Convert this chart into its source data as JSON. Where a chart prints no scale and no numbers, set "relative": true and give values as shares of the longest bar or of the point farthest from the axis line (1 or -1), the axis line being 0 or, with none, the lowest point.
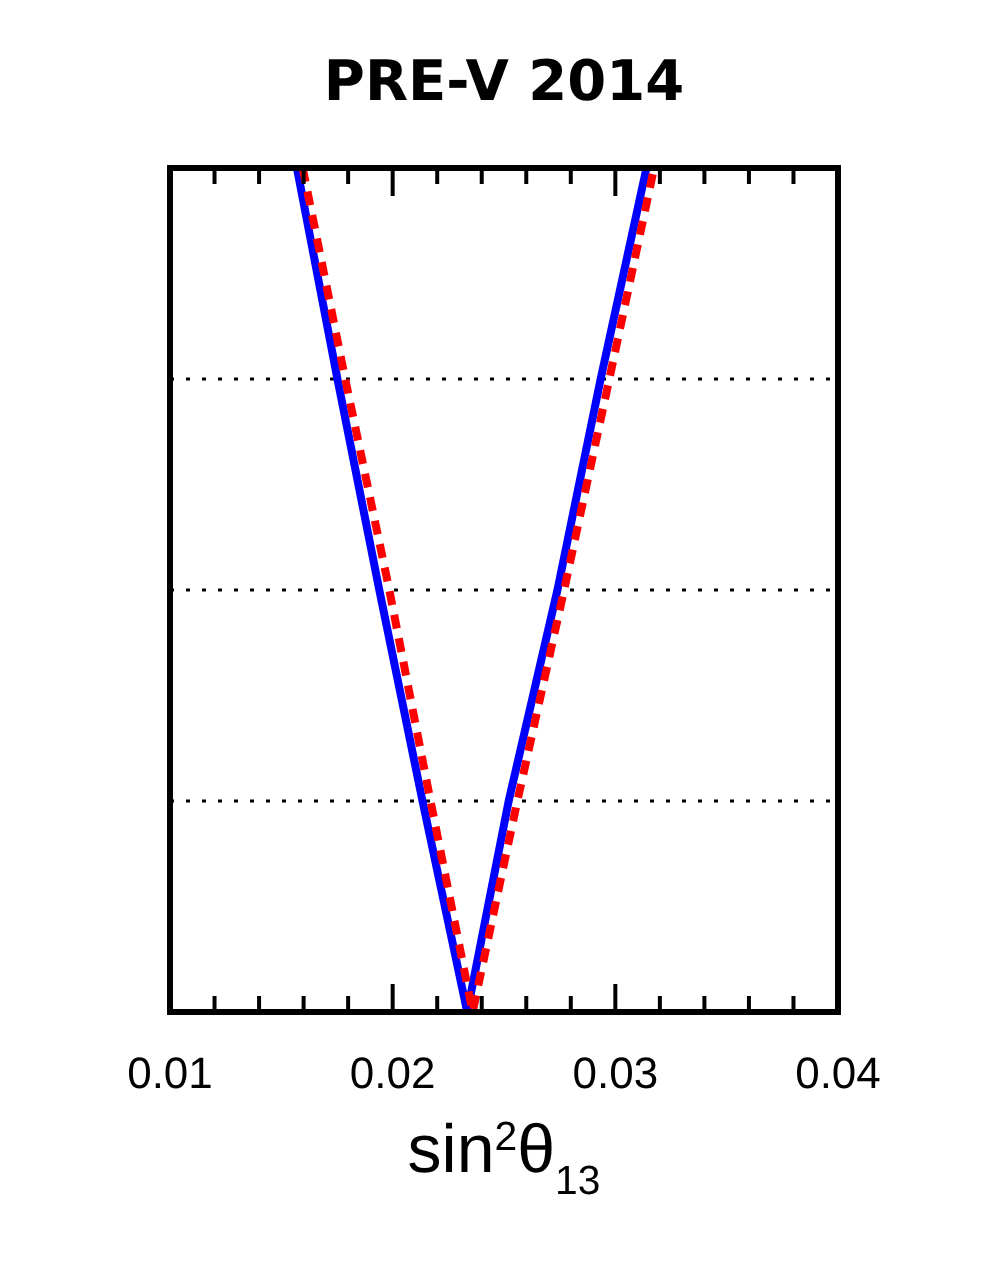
{
  "chart_data": {
    "type": "line",
    "title": "PRE-V 2014",
    "xlabel": "sin$^{2}$θ$_{13}$",
    "relative": true,
    "xlim": [
      0.01,
      0.04
    ],
    "xticks": [
      0.01,
      {
        "value": 0.012,
        "label": null
      },
      {
        "value": 0.014,
        "label": null
      },
      {
        "value": 0.016,
        "label": null
      },
      {
        "value": 0.018,
        "label": null
      },
      0.02,
      {
        "value": 0.022,
        "label": null
      },
      {
        "value": 0.024,
        "label": null
      },
      {
        "value": 0.026,
        "label": null
      },
      {
        "value": 0.028,
        "label": null
      },
      0.03,
      {
        "value": 0.032,
        "label": null
      },
      {
        "value": 0.034,
        "label": null
      },
      {
        "value": 0.036,
        "label": null
      },
      {
        "value": 0.038,
        "label": null
      },
      0.04
    ],
    "series": [
      {
        "color": "#0000ff",
        "line_style": "solid",
        "x": [
          0.0157,
          0.01752,
          0.0194,
          0.02134,
          0.02335,
          0.02521,
          0.0274,
          0.02934,
          0.0314
        ],
        "values": [
          1,
          0.75,
          0.5,
          0.25,
          0,
          0.25,
          0.5,
          0.75,
          1
        ]
      },
      {
        "color": "#ff0000",
        "line_style": "dashed",
        "x": [
          0.01596,
          0.01787,
          0.01985,
          0.0217,
          0.02359,
          0.0256,
          0.0277,
          0.02973,
          0.03174
        ],
        "values": [
          1,
          0.75,
          0.5,
          0.25,
          0,
          0.25,
          0.5,
          0.75,
          1
        ]
      }
    ],
    "ref_lines": [
      {
        "axis": "y",
        "value": 0.25,
        "color": "#000000",
        "line_style": "dotted"
      },
      {
        "axis": "y",
        "value": 0.5,
        "color": "#000000",
        "line_style": "dotted"
      },
      {
        "axis": "y",
        "value": 0.75,
        "color": "#000000",
        "line_style": "dotted"
      }
    ],
    "tick_labels": "x"
  }
}
